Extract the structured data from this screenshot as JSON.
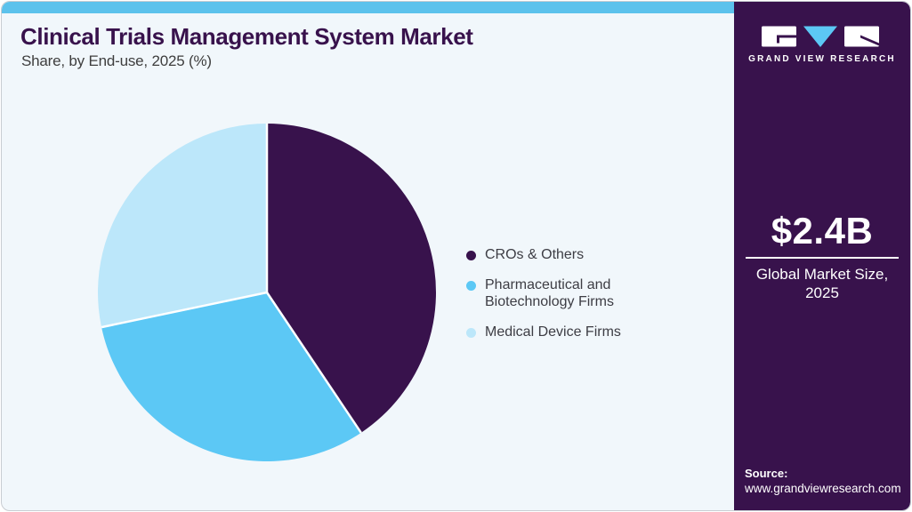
{
  "theme": {
    "canvas_bg": "#ffffff",
    "card_bg": "#f1f7fb",
    "card_border": "#c9cdd2",
    "top_strip": "#5cc2ec",
    "dark_purple": "#38124c",
    "slice_divider": "#ffffff"
  },
  "header": {
    "title": "Clinical Trials Management System Market",
    "subtitle": "Share, by End-use, 2025 (%)"
  },
  "chart_data": {
    "type": "pie",
    "title": "Clinical Trials Management System Market Share, by End-use, 2025 (%)",
    "categories": [
      "CROs & Others",
      "Pharmaceutical and Biotechnology Firms",
      "Medical Device Firms"
    ],
    "values": [
      40.6,
      31.1,
      28.3
    ],
    "unit": "% share (estimated from slice angles)",
    "colors": [
      "#38124c",
      "#5cc8f5",
      "#bce7fa"
    ],
    "start_angle_deg": 0,
    "direction": "clockwise",
    "legend_position": "right-middle",
    "data_labels_shown": false
  },
  "legend": {
    "items": [
      {
        "label": "CROs & Others",
        "color": "#38124c"
      },
      {
        "label": "Pharmaceutical and Biotechnology Firms",
        "color": "#5cc8f5"
      },
      {
        "label": "Medical Device Firms",
        "color": "#bce7fa"
      }
    ]
  },
  "sidebar": {
    "bg": "#38124c",
    "brand": "GRAND VIEW RESEARCH",
    "logo_icon": "gvr-logo",
    "stat_value": "$2.4B",
    "stat_label": "Global Market Size, 2025",
    "source_heading": "Source:",
    "source_url": "www.grandviewresearch.com"
  }
}
